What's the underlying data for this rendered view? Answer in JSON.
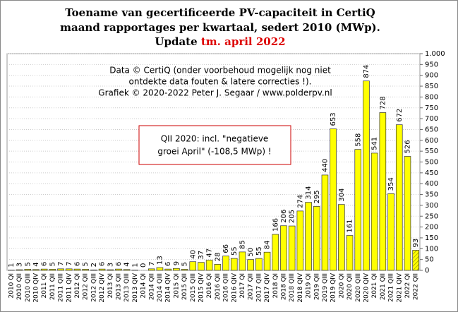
{
  "chart_data": {
    "type": "bar",
    "title_lines": [
      "Toename van gecertificeerde PV-capaciteit in CertiQ",
      "maand rapportages per kwartaal, sedert 2010 (MWp)."
    ],
    "title_update": {
      "prefix": "Update",
      "date": "tm. april 2022",
      "date_color": "#dd0000"
    },
    "annotation_lines": [
      "Data © CertiQ (onder voorbehoud mogelijk  nog niet",
      "ontdekte data fouten & latere correcties !).",
      "Grafiek  © 2020-2022 Peter J. Segaar / www.polderpv.nl"
    ],
    "box_lines": [
      "QII 2020:  incl. \"negatieve",
      "groei April\"  (-108,5 MWp)  !"
    ],
    "categories": [
      "2010 QI",
      "2010 QII",
      "2010 QIII",
      "2010 QIV",
      "2011 QI",
      "2011 QII",
      "2011 QIII",
      "2011 QIV",
      "2012 QI",
      "2012 QII",
      "2012 QIII",
      "2012 QIV",
      "2013 QI",
      "2013 QII",
      "2013 QIII",
      "2013 QIV",
      "2014 QI",
      "2014 QII",
      "2014 QIII",
      "2014 QIV",
      "2015 QI",
      "2015 QII",
      "2015 QIII",
      "2015 QIV",
      "2016 QI",
      "2016 QII",
      "2016 QIII",
      "2016 QIV",
      "2017 QI",
      "2017 QII",
      "2017 QIII",
      "2017 QIV",
      "2018 QI",
      "2018 QII",
      "2018 QIII",
      "2018 QIV",
      "2019 QI",
      "2019 QII",
      "2019 QIII",
      "2019 QIV",
      "2020 QI",
      "2020 QII",
      "2020 QIII",
      "2020 QIV",
      "2021 QI",
      "2021 QII",
      "2021 QIII",
      "2021 QIV",
      "2022 QI",
      "2022 QII"
    ],
    "values": [
      1,
      3,
      5,
      4,
      6,
      5,
      7,
      7,
      6,
      5,
      2,
      6,
      3,
      6,
      4,
      1,
      0,
      7,
      13,
      6,
      9,
      5,
      40,
      37,
      47,
      28,
      66,
      55,
      85,
      50,
      55,
      84,
      166,
      206,
      205,
      274,
      314,
      295,
      440,
      653,
      304,
      161,
      558,
      874,
      541,
      728,
      354,
      672,
      526,
      93
    ],
    "color": "#ffff00",
    "hatched_last": true,
    "highlight": {
      "index": 43,
      "color": "#cc0000"
    },
    "ylim": [
      0,
      1000
    ],
    "yticks": [
      0,
      50,
      100,
      150,
      200,
      250,
      300,
      350,
      400,
      450,
      500,
      550,
      600,
      650,
      700,
      750,
      800,
      850,
      900,
      950,
      {
        "value": 1000,
        "label": "1.000"
      }
    ],
    "grid": true
  }
}
